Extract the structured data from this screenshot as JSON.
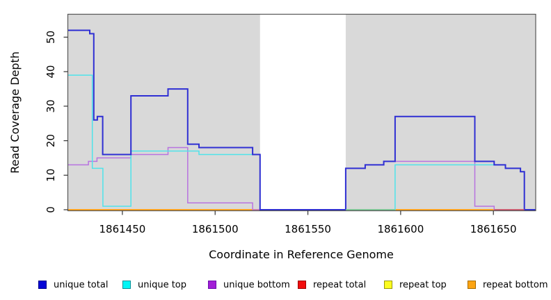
{
  "axes": {
    "x_label": "Coordinate in Reference Genome",
    "y_label": "Read Coverage Depth",
    "x_tick_labels": [
      "1861450",
      "1861500",
      "1861550",
      "1861600",
      "1861650"
    ],
    "y_tick_labels": [
      "0",
      "10",
      "20",
      "30",
      "40",
      "50"
    ]
  },
  "legend": {
    "items": [
      {
        "label": "unique total",
        "fill": "#0606d6",
        "stroke": "#00008b"
      },
      {
        "label": "unique top",
        "fill": "#00f6f6",
        "stroke": "#0b8f96"
      },
      {
        "label": "unique bottom",
        "fill": "#a21ed6",
        "stroke": "#6a0dad"
      },
      {
        "label": "repeat total",
        "fill": "#f20d0d",
        "stroke": "#9b0000"
      },
      {
        "label": "repeat top",
        "fill": "#fcfc1f",
        "stroke": "#97970b"
      },
      {
        "label": "repeat bottom",
        "fill": "#fca412",
        "stroke": "#a66b00"
      }
    ]
  },
  "chart_data": {
    "type": "line",
    "subtype": "step-coverage",
    "title": "",
    "xlabel": "Coordinate in Reference Genome",
    "ylabel": "Read Coverage Depth",
    "x_range": [
      1861420.6,
      1861672.8
    ],
    "y_range": [
      0,
      57
    ],
    "x_tick_values": [
      1861450,
      1861500,
      1861550,
      1861600,
      1861650
    ],
    "y_tick_values": [
      0,
      10,
      20,
      30,
      40,
      50
    ],
    "grid": false,
    "legend_position": "bottom",
    "plot_bg": "#ffffff",
    "coverage_region_color": "#d9d9d9",
    "coverage_regions": [
      [
        1861420.6,
        1861524.2
      ],
      [
        1861570.4,
        1861672.8
      ]
    ],
    "uncovered_gap": [
      1861524.2,
      1861570.4
    ],
    "series": [
      {
        "name": "repeat total",
        "color": "#cc2936",
        "width": 1.4,
        "parts": [
          {
            "steps": [
              [
                1861420.6,
                0
              ]
            ],
            "end": 1861524.2
          },
          {
            "steps": [
              [
                1861570.4,
                0
              ]
            ],
            "end": 1861672.8
          }
        ]
      },
      {
        "name": "repeat top",
        "color": "#f5e63c",
        "width": 1.4,
        "parts": [
          {
            "steps": [
              [
                1861420.6,
                0
              ]
            ],
            "end": 1861524.2
          },
          {
            "steps": [
              [
                1861570.4,
                0
              ]
            ],
            "end": 1861672.8
          }
        ]
      },
      {
        "name": "repeat bottom",
        "color": "#ffa41e",
        "width": 2,
        "parts": [
          {
            "steps": [
              [
                1861420.6,
                0
              ]
            ],
            "end": 1861524.2
          },
          {
            "steps": [
              [
                1861570.4,
                0
              ]
            ],
            "end": 1861672.8
          }
        ]
      },
      {
        "name": "unique bottom",
        "color": "#b873e0",
        "width": 1.5,
        "parts": [
          {
            "steps": [
              [
                1861420.6,
                13
              ],
              [
                1861431.7,
                14
              ],
              [
                1861436.3,
                15
              ],
              [
                1861454.6,
                16
              ],
              [
                1861474.6,
                18
              ],
              [
                1861485.2,
                2
              ],
              [
                1861520.2,
                0
              ],
              [
                1861570.4,
                12
              ],
              [
                1861580.9,
                13
              ],
              [
                1861590.9,
                14
              ],
              [
                1861640,
                1
              ],
              [
                1861650.4,
                0
              ]
            ],
            "end": 1861672.8
          }
        ]
      },
      {
        "name": "unique top",
        "color": "#4fe3ea",
        "width": 1.5,
        "parts": [
          {
            "steps": [
              [
                1861420.6,
                39
              ],
              [
                1861433.8,
                12
              ],
              [
                1861439.5,
                1
              ],
              [
                1861454.6,
                17
              ],
              [
                1861491.3,
                16
              ],
              [
                1861524.2,
                0
              ],
              [
                1861597,
                13
              ],
              [
                1861656.5,
                12
              ],
              [
                1861664.6,
                11
              ],
              [
                1861666.7,
                0
              ]
            ],
            "end": 1861672.8
          }
        ]
      },
      {
        "name": "unique total",
        "color": "#2f2fd3",
        "width": 2,
        "parts": [
          {
            "steps": [
              [
                1861420.6,
                52
              ],
              [
                1861432.4,
                51
              ],
              [
                1861434.6,
                26
              ],
              [
                1861436.5,
                27
              ],
              [
                1861439.4,
                16
              ],
              [
                1861454.6,
                33
              ],
              [
                1861474.6,
                35
              ],
              [
                1861485.2,
                19
              ],
              [
                1861491.3,
                18
              ],
              [
                1861520.2,
                16
              ],
              [
                1861524.2,
                0
              ],
              [
                1861570.4,
                12
              ],
              [
                1861580.9,
                13
              ],
              [
                1861590.9,
                14
              ],
              [
                1861597,
                27
              ],
              [
                1861640,
                14
              ],
              [
                1861650.4,
                13
              ],
              [
                1861656.5,
                12
              ],
              [
                1861664.6,
                11
              ],
              [
                1861666.7,
                0
              ]
            ],
            "end": 1861672.8
          }
        ]
      }
    ],
    "zero_line_overlays": [
      {
        "from": 1861570.4,
        "to": 1861597,
        "color": "#74c79b",
        "width": 1.6
      },
      {
        "from": 1861650.4,
        "to": 1861666.7,
        "color": "#c8506e",
        "width": 1.6
      }
    ]
  },
  "layout_colors": {
    "plot_border": "#555555",
    "tick": "#333333"
  }
}
